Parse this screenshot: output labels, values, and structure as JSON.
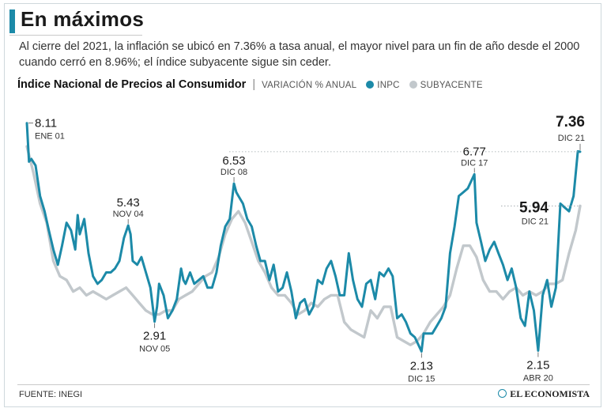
{
  "colors": {
    "accent": "#1c8aa8",
    "inpc": "#1c8aa8",
    "core": "#c2c8cc",
    "text": "#1a1a1a"
  },
  "header": {
    "title": "En máximos",
    "subtitle": "Al cierre del 2021, la inflación se ubicó en 7.36% a tasa anual, el mayor nivel para un fin de año desde el 2000 cuando cerró en 8.96%; el índice subyacente sigue sin ceder."
  },
  "chart_head": {
    "title": "Índice Nacional de Precios al Consumidor",
    "separator": "|",
    "subtitle": "VARIACIÓN % ANUAL",
    "legend_inpc": "INPC",
    "legend_core": "SUBYACENTE"
  },
  "footer": {
    "source": "FUENTE: INEGI",
    "brand": "EL ECONOMISTA"
  },
  "chart_data": {
    "type": "line",
    "title": "Índice Nacional de Precios al Consumidor",
    "ylabel": "Variación % anual",
    "x_range": [
      2001.0,
      2021.917
    ],
    "ylim": [
      1.6,
      8.6
    ],
    "grid": false,
    "legend": "top-left",
    "series": [
      {
        "name": "INPC",
        "points": [
          [
            2001.0,
            8.11
          ],
          [
            2001.08,
            7.1
          ],
          [
            2001.17,
            7.17
          ],
          [
            2001.33,
            7.0
          ],
          [
            2001.5,
            6.2
          ],
          [
            2001.67,
            5.8
          ],
          [
            2001.83,
            5.3
          ],
          [
            2002.0,
            4.8
          ],
          [
            2002.17,
            4.4
          ],
          [
            2002.33,
            4.9
          ],
          [
            2002.5,
            5.5
          ],
          [
            2002.67,
            5.3
          ],
          [
            2002.83,
            4.8
          ],
          [
            2002.92,
            5.7
          ],
          [
            2003.0,
            5.2
          ],
          [
            2003.17,
            5.6
          ],
          [
            2003.33,
            4.7
          ],
          [
            2003.5,
            4.1
          ],
          [
            2003.67,
            3.9
          ],
          [
            2003.83,
            4.0
          ],
          [
            2004.0,
            4.2
          ],
          [
            2004.17,
            4.2
          ],
          [
            2004.33,
            4.3
          ],
          [
            2004.5,
            4.5
          ],
          [
            2004.67,
            5.1
          ],
          [
            2004.83,
            5.43
          ],
          [
            2004.92,
            5.2
          ],
          [
            2005.0,
            4.5
          ],
          [
            2005.17,
            4.4
          ],
          [
            2005.33,
            4.6
          ],
          [
            2005.5,
            4.2
          ],
          [
            2005.67,
            3.8
          ],
          [
            2005.83,
            2.91
          ],
          [
            2005.92,
            3.3
          ],
          [
            2006.0,
            3.9
          ],
          [
            2006.17,
            3.6
          ],
          [
            2006.33,
            3.0
          ],
          [
            2006.5,
            3.2
          ],
          [
            2006.67,
            3.5
          ],
          [
            2006.83,
            4.3
          ],
          [
            2006.92,
            4.0
          ],
          [
            2007.0,
            3.9
          ],
          [
            2007.17,
            4.2
          ],
          [
            2007.33,
            3.9
          ],
          [
            2007.5,
            4.0
          ],
          [
            2007.67,
            4.1
          ],
          [
            2007.83,
            3.8
          ],
          [
            2008.0,
            3.8
          ],
          [
            2008.17,
            4.2
          ],
          [
            2008.33,
            4.9
          ],
          [
            2008.5,
            5.4
          ],
          [
            2008.67,
            5.6
          ],
          [
            2008.83,
            6.53
          ],
          [
            2008.92,
            6.3
          ],
          [
            2009.0,
            6.2
          ],
          [
            2009.17,
            6.0
          ],
          [
            2009.33,
            5.6
          ],
          [
            2009.5,
            5.4
          ],
          [
            2009.67,
            4.9
          ],
          [
            2009.83,
            4.5
          ],
          [
            2010.0,
            4.5
          ],
          [
            2010.17,
            4.0
          ],
          [
            2010.33,
            4.4
          ],
          [
            2010.5,
            3.7
          ],
          [
            2010.67,
            3.8
          ],
          [
            2010.83,
            4.2
          ],
          [
            2011.0,
            3.7
          ],
          [
            2011.17,
            3.0
          ],
          [
            2011.33,
            3.4
          ],
          [
            2011.5,
            3.5
          ],
          [
            2011.67,
            3.1
          ],
          [
            2011.83,
            3.3
          ],
          [
            2012.0,
            4.0
          ],
          [
            2012.17,
            3.9
          ],
          [
            2012.33,
            4.3
          ],
          [
            2012.5,
            4.5
          ],
          [
            2012.67,
            4.1
          ],
          [
            2012.83,
            3.6
          ],
          [
            2013.0,
            3.6
          ],
          [
            2013.17,
            4.7
          ],
          [
            2013.33,
            4.0
          ],
          [
            2013.5,
            3.5
          ],
          [
            2013.67,
            3.3
          ],
          [
            2013.83,
            3.9
          ],
          [
            2014.0,
            4.0
          ],
          [
            2014.17,
            3.5
          ],
          [
            2014.33,
            4.2
          ],
          [
            2014.5,
            4.1
          ],
          [
            2014.67,
            4.3
          ],
          [
            2014.83,
            4.1
          ],
          [
            2015.0,
            3.0
          ],
          [
            2015.17,
            3.1
          ],
          [
            2015.33,
            2.9
          ],
          [
            2015.5,
            2.6
          ],
          [
            2015.67,
            2.5
          ],
          [
            2015.92,
            2.13
          ],
          [
            2016.0,
            2.6
          ],
          [
            2016.17,
            2.6
          ],
          [
            2016.33,
            2.6
          ],
          [
            2016.5,
            2.8
          ],
          [
            2016.67,
            3.0
          ],
          [
            2016.83,
            3.3
          ],
          [
            2017.0,
            4.7
          ],
          [
            2017.17,
            5.4
          ],
          [
            2017.33,
            6.2
          ],
          [
            2017.5,
            6.3
          ],
          [
            2017.67,
            6.4
          ],
          [
            2017.92,
            6.77
          ],
          [
            2018.0,
            5.5
          ],
          [
            2018.17,
            5.0
          ],
          [
            2018.33,
            4.5
          ],
          [
            2018.5,
            4.8
          ],
          [
            2018.67,
            5.0
          ],
          [
            2018.83,
            4.7
          ],
          [
            2019.0,
            4.4
          ],
          [
            2019.17,
            4.0
          ],
          [
            2019.33,
            4.3
          ],
          [
            2019.5,
            3.8
          ],
          [
            2019.67,
            3.0
          ],
          [
            2019.83,
            2.8
          ],
          [
            2020.0,
            3.7
          ],
          [
            2020.17,
            3.2
          ],
          [
            2020.33,
            2.15
          ],
          [
            2020.5,
            3.6
          ],
          [
            2020.67,
            4.0
          ],
          [
            2020.83,
            3.3
          ],
          [
            2021.0,
            3.8
          ],
          [
            2021.17,
            6.0
          ],
          [
            2021.33,
            5.9
          ],
          [
            2021.5,
            5.8
          ],
          [
            2021.67,
            6.2
          ],
          [
            2021.83,
            7.37
          ],
          [
            2021.917,
            7.36
          ]
        ]
      },
      {
        "name": "Subyacente",
        "points": [
          [
            2001.0,
            7.5
          ],
          [
            2001.25,
            6.8
          ],
          [
            2001.5,
            6.0
          ],
          [
            2001.75,
            5.5
          ],
          [
            2002.0,
            4.5
          ],
          [
            2002.25,
            4.1
          ],
          [
            2002.5,
            4.0
          ],
          [
            2002.75,
            3.7
          ],
          [
            2003.0,
            3.8
          ],
          [
            2003.25,
            3.6
          ],
          [
            2003.5,
            3.7
          ],
          [
            2003.75,
            3.6
          ],
          [
            2004.0,
            3.5
          ],
          [
            2004.25,
            3.6
          ],
          [
            2004.5,
            3.7
          ],
          [
            2004.75,
            3.8
          ],
          [
            2005.0,
            3.6
          ],
          [
            2005.25,
            3.4
          ],
          [
            2005.5,
            3.2
          ],
          [
            2005.75,
            3.1
          ],
          [
            2006.0,
            3.1
          ],
          [
            2006.25,
            3.2
          ],
          [
            2006.5,
            3.2
          ],
          [
            2006.75,
            3.5
          ],
          [
            2007.0,
            3.6
          ],
          [
            2007.25,
            3.7
          ],
          [
            2007.5,
            3.9
          ],
          [
            2007.75,
            4.1
          ],
          [
            2008.0,
            4.2
          ],
          [
            2008.25,
            4.6
          ],
          [
            2008.5,
            5.2
          ],
          [
            2008.75,
            5.6
          ],
          [
            2009.0,
            5.8
          ],
          [
            2009.25,
            5.5
          ],
          [
            2009.5,
            5.0
          ],
          [
            2009.75,
            4.5
          ],
          [
            2010.0,
            4.2
          ],
          [
            2010.25,
            3.8
          ],
          [
            2010.5,
            3.6
          ],
          [
            2010.75,
            3.6
          ],
          [
            2011.0,
            3.4
          ],
          [
            2011.25,
            3.1
          ],
          [
            2011.5,
            3.2
          ],
          [
            2011.75,
            3.4
          ],
          [
            2012.0,
            3.3
          ],
          [
            2012.25,
            3.5
          ],
          [
            2012.5,
            3.6
          ],
          [
            2012.75,
            3.6
          ],
          [
            2013.0,
            2.9
          ],
          [
            2013.25,
            2.7
          ],
          [
            2013.5,
            2.6
          ],
          [
            2013.75,
            2.5
          ],
          [
            2014.0,
            3.2
          ],
          [
            2014.25,
            3.0
          ],
          [
            2014.5,
            3.3
          ],
          [
            2014.75,
            3.3
          ],
          [
            2015.0,
            2.5
          ],
          [
            2015.25,
            2.4
          ],
          [
            2015.5,
            2.3
          ],
          [
            2015.75,
            2.4
          ],
          [
            2016.0,
            2.6
          ],
          [
            2016.25,
            2.9
          ],
          [
            2016.5,
            3.1
          ],
          [
            2016.75,
            3.3
          ],
          [
            2017.0,
            3.6
          ],
          [
            2017.25,
            4.3
          ],
          [
            2017.5,
            4.9
          ],
          [
            2017.75,
            4.9
          ],
          [
            2018.0,
            4.6
          ],
          [
            2018.25,
            4.0
          ],
          [
            2018.5,
            3.7
          ],
          [
            2018.75,
            3.7
          ],
          [
            2019.0,
            3.5
          ],
          [
            2019.25,
            3.7
          ],
          [
            2019.5,
            3.8
          ],
          [
            2019.75,
            3.6
          ],
          [
            2020.0,
            3.7
          ],
          [
            2020.25,
            3.6
          ],
          [
            2020.5,
            3.7
          ],
          [
            2020.75,
            3.9
          ],
          [
            2021.0,
            3.9
          ],
          [
            2021.25,
            4.0
          ],
          [
            2021.5,
            4.7
          ],
          [
            2021.75,
            5.3
          ],
          [
            2021.917,
            5.94
          ]
        ]
      }
    ],
    "annotations": [
      {
        "series": "INPC",
        "x": 2001.0,
        "value": "8.11",
        "date": "ENE 01",
        "anchor": "right",
        "emphasis": false
      },
      {
        "series": "INPC",
        "x": 2004.83,
        "value": "5.43",
        "date": "NOV 04",
        "anchor": "above",
        "emphasis": false
      },
      {
        "series": "INPC",
        "x": 2005.83,
        "value": "2.91",
        "date": "NOV 05",
        "anchor": "below",
        "emphasis": false
      },
      {
        "series": "INPC",
        "x": 2008.83,
        "value": "6.53",
        "date": "DIC 08",
        "anchor": "above",
        "emphasis": false
      },
      {
        "series": "INPC",
        "x": 2015.92,
        "value": "2.13",
        "date": "DIC 15",
        "anchor": "below",
        "emphasis": false
      },
      {
        "series": "INPC",
        "x": 2017.92,
        "value": "6.77",
        "date": "DIC 17",
        "anchor": "above",
        "emphasis": false
      },
      {
        "series": "INPC",
        "x": 2020.33,
        "value": "2.15",
        "date": "ABR 20",
        "anchor": "below",
        "emphasis": false
      },
      {
        "series": "INPC",
        "x": 2021.917,
        "value": "7.36",
        "date": "DIC 21",
        "anchor": "above-left",
        "emphasis": true
      },
      {
        "series": "Subyacente",
        "x": 2021.917,
        "value": "5.94",
        "date": "DIC 21",
        "anchor": "left",
        "emphasis": true
      }
    ]
  }
}
